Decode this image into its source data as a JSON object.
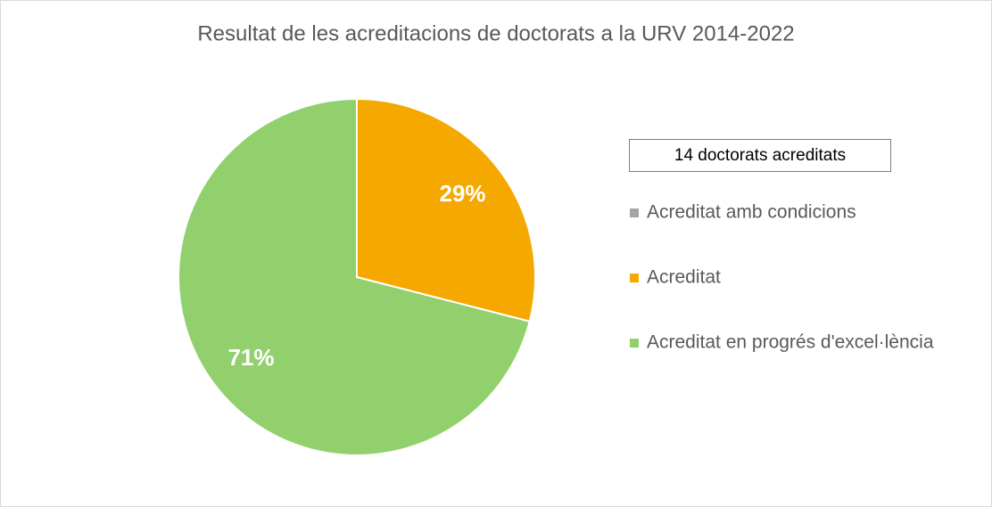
{
  "chart_data": {
    "type": "pie",
    "title": "Resultat de les acreditacions de doctorats a la URV 2014-2022",
    "annotation": "14 doctorats acreditats",
    "categories": [
      "Acreditat amb condicions",
      "Acreditat",
      "Acreditat en progrés d'excel·lència"
    ],
    "values": [
      0,
      29,
      71
    ],
    "value_labels": [
      null,
      "29%",
      "71%"
    ],
    "colors": [
      "#a5a5a5",
      "#f5a800",
      "#92d06e"
    ],
    "legend": "right"
  }
}
